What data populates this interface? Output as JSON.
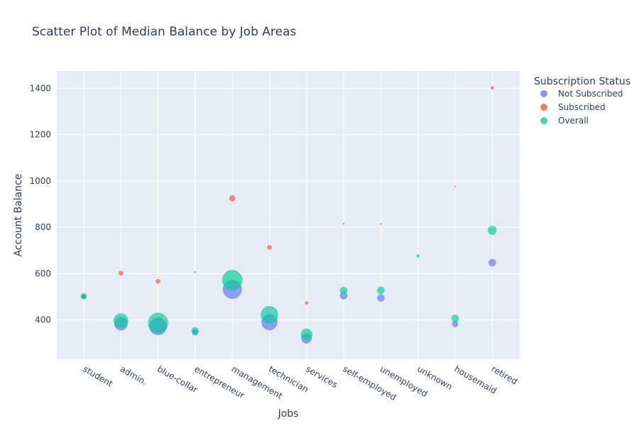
{
  "chart_data": {
    "type": "scatter",
    "title": "Scatter Plot of Median Balance by Job Areas",
    "xlabel": "Jobs",
    "ylabel": "Account Balance",
    "categories": [
      "student",
      "admin.",
      "blue-collar",
      "entrepreneur",
      "management",
      "technician",
      "services",
      "self-employed",
      "unemployed",
      "unknown",
      "housemaid",
      "retired"
    ],
    "ylim": [
      230,
      1475
    ],
    "yticks": [
      400,
      600,
      800,
      1000,
      1200,
      1400
    ],
    "grid": true,
    "legend": {
      "title": "Subscription Status",
      "placement": "top-right"
    },
    "series": [
      {
        "name": "Not Subscribed",
        "color": "#636efa",
        "values": [
          500,
          383,
          372,
          346,
          532,
          390,
          320,
          505,
          495,
          null,
          382,
          647
        ],
        "size": [
          3,
          9,
          12,
          4,
          13,
          11,
          7,
          5,
          5,
          null,
          4,
          5
        ]
      },
      {
        "name": "Subscribed",
        "color": "#ef553b",
        "values": [
          500,
          602,
          567,
          606,
          925,
          713,
          473,
          815,
          815,
          null,
          976,
          1402
        ],
        "size": [
          2,
          3,
          3,
          1,
          4,
          3,
          2,
          1,
          1,
          null,
          1,
          2
        ]
      },
      {
        "name": "Overall",
        "color": "#00cc96",
        "values": [
          502,
          397,
          387,
          353,
          572,
          422,
          337,
          527,
          528,
          676,
          406,
          787
        ],
        "size": [
          4,
          10,
          14,
          5,
          14,
          12,
          8,
          5,
          5,
          2,
          5,
          6
        ]
      }
    ]
  }
}
